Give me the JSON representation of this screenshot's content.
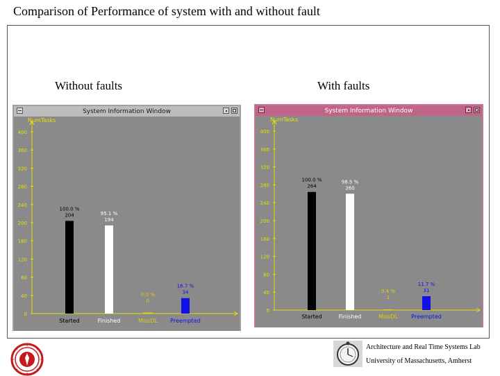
{
  "slide": {
    "title": "Comparison of Performance of system with and without fault",
    "footer": {
      "line1": "Architecture and Real Time Systems Lab",
      "line2": "University of Massachusetts, Amherst"
    }
  },
  "panels": [
    {
      "label": "Without faults",
      "window_title": "System Information Window"
    },
    {
      "label": "With faults",
      "window_title": "System Information Window"
    }
  ],
  "colors": {
    "plot_bg": "#8a8a8a",
    "axis": "#e8e000",
    "started": "#000000",
    "finished": "#ffffff",
    "missdl": "#e8d000",
    "preempted": "#1010e8"
  },
  "chart_data": [
    {
      "type": "bar",
      "ylabel": "NumTasks",
      "ylim": [
        0,
        400
      ],
      "yticks": [
        0,
        40,
        80,
        120,
        160,
        200,
        240,
        280,
        320,
        360,
        400
      ],
      "categories": [
        "Started",
        "Finished",
        "MissDL",
        "Preempted"
      ],
      "values": [
        204,
        194,
        0,
        34
      ],
      "percent_labels": [
        "100.0 %",
        "95.1 %",
        "0.0 %",
        "16.7 %"
      ],
      "count_labels": [
        "204",
        "194",
        "0",
        "34"
      ]
    },
    {
      "type": "bar",
      "ylabel": "NumTasks",
      "ylim": [
        0,
        400
      ],
      "yticks": [
        0,
        40,
        80,
        120,
        160,
        200,
        240,
        280,
        320,
        360,
        400
      ],
      "categories": [
        "Started",
        "Finished",
        "MissDL",
        "Preempted"
      ],
      "values": [
        264,
        260,
        1,
        31
      ],
      "percent_labels": [
        "100.0 %",
        "98.5 %",
        "0.4 %",
        "11.7 %"
      ],
      "count_labels": [
        "264",
        "260",
        "1",
        "31"
      ]
    }
  ]
}
